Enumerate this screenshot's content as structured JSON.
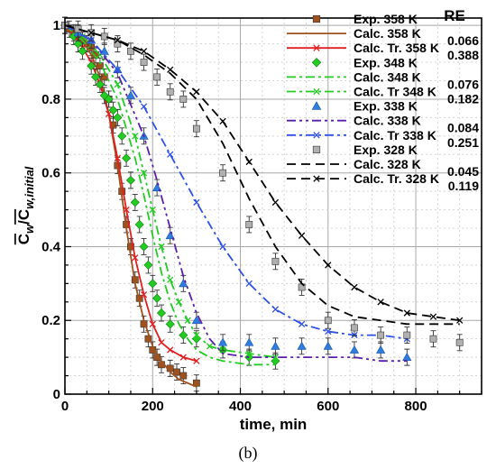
{
  "chart_data": {
    "type": "line",
    "xlabel": "time, min",
    "ylabel_main": "C",
    "ylabel_sub1": "w",
    "ylabel_mid": "/C",
    "ylabel_sub2": "w,initial",
    "xlim": [
      0,
      950
    ],
    "ylim": [
      0,
      1.02
    ],
    "xticks": [
      "0",
      "200",
      "400",
      "600",
      "800"
    ],
    "yticks": [
      "0",
      "0.2",
      "0.4",
      "0.6",
      "0.8",
      "1"
    ],
    "grid": true,
    "legend_placement": "top-right",
    "re_header": "RE",
    "caption": "(b)",
    "series": [
      {
        "name": "Exp. 358 K",
        "kind": "exp",
        "marker": "square",
        "color": "#a0521e",
        "x": [
          0,
          10,
          20,
          30,
          40,
          50,
          60,
          70,
          80,
          90,
          100,
          110,
          120,
          130,
          140,
          150,
          160,
          170,
          180,
          190,
          200,
          210,
          220,
          240,
          255,
          270,
          300
        ],
        "y": [
          1.0,
          0.99,
          0.98,
          0.97,
          0.96,
          0.95,
          0.94,
          0.92,
          0.89,
          0.86,
          0.8,
          0.73,
          0.62,
          0.55,
          0.46,
          0.4,
          0.31,
          0.26,
          0.19,
          0.15,
          0.12,
          0.1,
          0.08,
          0.07,
          0.06,
          0.05,
          0.03
        ]
      },
      {
        "name": "Calc. 358 K",
        "kind": "calc",
        "dash": "",
        "color": "#a0521e",
        "re": "0.066",
        "x": [
          0,
          20,
          40,
          60,
          80,
          100,
          120,
          140,
          160,
          180,
          200,
          220,
          240,
          260,
          280,
          300
        ],
        "y": [
          1.0,
          0.985,
          0.96,
          0.92,
          0.86,
          0.76,
          0.62,
          0.45,
          0.3,
          0.2,
          0.13,
          0.09,
          0.06,
          0.04,
          0.03,
          0.02
        ]
      },
      {
        "name": "Calc. Tr. 358 K",
        "kind": "calc",
        "dash": "",
        "marker": "x",
        "color": "#e02020",
        "re": "0.388",
        "x": [
          0,
          20,
          40,
          60,
          80,
          100,
          120,
          140,
          160,
          180,
          200,
          220,
          240,
          270,
          300
        ],
        "y": [
          1.0,
          0.975,
          0.94,
          0.9,
          0.84,
          0.76,
          0.64,
          0.5,
          0.37,
          0.27,
          0.19,
          0.14,
          0.12,
          0.1,
          0.09
        ]
      },
      {
        "name": "Exp. 348 K",
        "kind": "exp",
        "marker": "diamond",
        "color": "#22cc22",
        "x": [
          0,
          20,
          30,
          40,
          60,
          70,
          80,
          90,
          100,
          110,
          120,
          130,
          140,
          150,
          160,
          170,
          180,
          190,
          200,
          210,
          220,
          240,
          270,
          300,
          360,
          420,
          480
        ],
        "y": [
          1.0,
          0.97,
          0.95,
          0.93,
          0.89,
          0.86,
          0.84,
          0.81,
          0.8,
          0.77,
          0.75,
          0.7,
          0.64,
          0.58,
          0.52,
          0.46,
          0.4,
          0.35,
          0.3,
          0.26,
          0.22,
          0.19,
          0.16,
          0.15,
          0.12,
          0.1,
          0.09
        ]
      },
      {
        "name": "Calc. 348 K",
        "kind": "calc",
        "dash": "10 4 3 4",
        "color": "#22cc22",
        "re": "0.076",
        "x": [
          0,
          40,
          80,
          120,
          160,
          180,
          200,
          220,
          240,
          260,
          280,
          300,
          330,
          360,
          420,
          480
        ],
        "y": [
          1.0,
          0.96,
          0.9,
          0.8,
          0.64,
          0.54,
          0.43,
          0.33,
          0.25,
          0.19,
          0.15,
          0.12,
          0.1,
          0.09,
          0.08,
          0.08
        ]
      },
      {
        "name": "Calc. Tr 348 K",
        "kind": "calc",
        "dash": "10 4 3 4",
        "marker": "x",
        "color": "#22cc22",
        "re": "0.182",
        "x": [
          0,
          40,
          80,
          120,
          160,
          180,
          200,
          220,
          240,
          260,
          280,
          300,
          330,
          360,
          420,
          480
        ],
        "y": [
          1.0,
          0.97,
          0.92,
          0.84,
          0.7,
          0.6,
          0.5,
          0.4,
          0.31,
          0.25,
          0.2,
          0.16,
          0.13,
          0.12,
          0.11,
          0.1
        ]
      },
      {
        "name": "Exp. 338 K",
        "kind": "exp",
        "marker": "triangle",
        "color": "#2f7de0",
        "x": [
          0,
          30,
          60,
          90,
          120,
          150,
          180,
          210,
          240,
          270,
          300,
          360,
          420,
          480,
          540,
          600,
          660,
          720,
          780
        ],
        "y": [
          1.0,
          0.98,
          0.96,
          0.93,
          0.88,
          0.81,
          0.7,
          0.56,
          0.43,
          0.3,
          0.2,
          0.14,
          0.14,
          0.13,
          0.13,
          0.13,
          0.12,
          0.12,
          0.1
        ]
      },
      {
        "name": "Calc. 338 K",
        "kind": "calc",
        "dash": "10 4 3 4 3 4",
        "color": "#5a1fa8",
        "re": "0.084",
        "x": [
          0,
          60,
          120,
          180,
          210,
          240,
          270,
          300,
          330,
          360,
          420,
          480,
          540,
          600,
          660,
          720,
          780
        ],
        "y": [
          1.0,
          0.96,
          0.87,
          0.7,
          0.58,
          0.45,
          0.32,
          0.22,
          0.15,
          0.11,
          0.1,
          0.1,
          0.1,
          0.1,
          0.1,
          0.09,
          0.09
        ]
      },
      {
        "name": "Calc. Tr 338 K",
        "kind": "calc",
        "dash": "10 4 3 4",
        "marker": "x",
        "color": "#3050e8",
        "re": "0.251",
        "x": [
          0,
          60,
          120,
          180,
          240,
          300,
          360,
          420,
          480,
          540,
          600,
          660,
          720,
          780
        ],
        "y": [
          1.0,
          0.96,
          0.88,
          0.78,
          0.65,
          0.52,
          0.4,
          0.3,
          0.23,
          0.19,
          0.17,
          0.16,
          0.16,
          0.15
        ]
      },
      {
        "name": "Exp. 328 K",
        "kind": "exp",
        "marker": "square",
        "color": "#b0b0b0",
        "x": [
          0,
          30,
          60,
          90,
          120,
          150,
          180,
          210,
          240,
          270,
          300,
          360,
          420,
          480,
          540,
          600,
          660,
          720,
          780,
          840,
          900
        ],
        "y": [
          1.0,
          0.99,
          0.98,
          0.97,
          0.95,
          0.93,
          0.9,
          0.86,
          0.82,
          0.8,
          0.72,
          0.6,
          0.46,
          0.36,
          0.29,
          0.2,
          0.18,
          0.16,
          0.16,
          0.15,
          0.14
        ]
      },
      {
        "name": "Calc. 328 K",
        "kind": "calc",
        "dash": "10 6",
        "color": "#000000",
        "re": "0.045",
        "x": [
          0,
          60,
          120,
          180,
          240,
          300,
          360,
          420,
          480,
          540,
          600,
          660,
          720,
          780,
          840,
          900
        ],
        "y": [
          1.0,
          0.98,
          0.96,
          0.92,
          0.87,
          0.8,
          0.68,
          0.53,
          0.4,
          0.3,
          0.24,
          0.21,
          0.2,
          0.19,
          0.19,
          0.19
        ]
      },
      {
        "name": "Calc. Tr. 328 K",
        "kind": "calc",
        "dash": "10 6",
        "marker": "x",
        "color": "#000000",
        "re": "0.119",
        "x": [
          0,
          60,
          120,
          180,
          240,
          300,
          360,
          420,
          480,
          540,
          600,
          660,
          720,
          780,
          840,
          900
        ],
        "y": [
          1.0,
          0.98,
          0.96,
          0.93,
          0.88,
          0.82,
          0.74,
          0.63,
          0.52,
          0.43,
          0.35,
          0.29,
          0.25,
          0.22,
          0.21,
          0.2
        ]
      }
    ]
  }
}
